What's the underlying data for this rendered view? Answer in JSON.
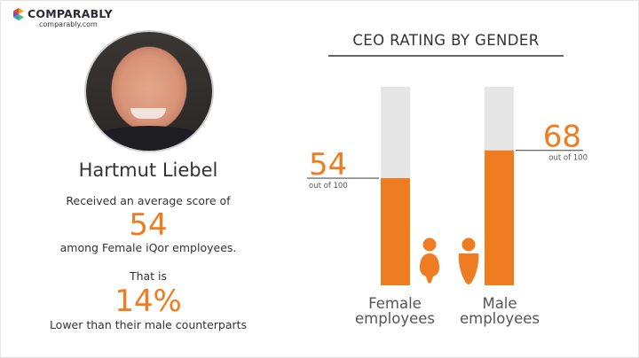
{
  "brand": {
    "name": "COMPARABLY",
    "url": "comparably.com",
    "accent": "#f07c22",
    "logo_icon": "comparably-logo-icon"
  },
  "profile": {
    "name": "Hartmut Liebel",
    "photo": "ceo-portrait-photo",
    "line1": "Received an average score of",
    "score": "54",
    "line2": "among Female iQor employees.",
    "line3": "That is",
    "difference": "14%",
    "line4": "Lower than their male counterparts"
  },
  "chart_data": {
    "type": "bar",
    "title": "CEO RATING BY GENDER",
    "categories": [
      "Female employees",
      "Male employees"
    ],
    "category_lines": [
      [
        "Female",
        "employees"
      ],
      [
        "Male",
        "employees"
      ]
    ],
    "values": [
      54,
      68
    ],
    "value_labels": [
      "54",
      "68"
    ],
    "max": 100,
    "sublabel": "out of 100",
    "ylim": [
      0,
      100
    ],
    "icons": [
      "female-person-icon",
      "male-person-icon"
    ],
    "colors": {
      "fill": "#f07c22",
      "track": "#e6e6e6"
    },
    "grid": false,
    "legend": "none"
  }
}
